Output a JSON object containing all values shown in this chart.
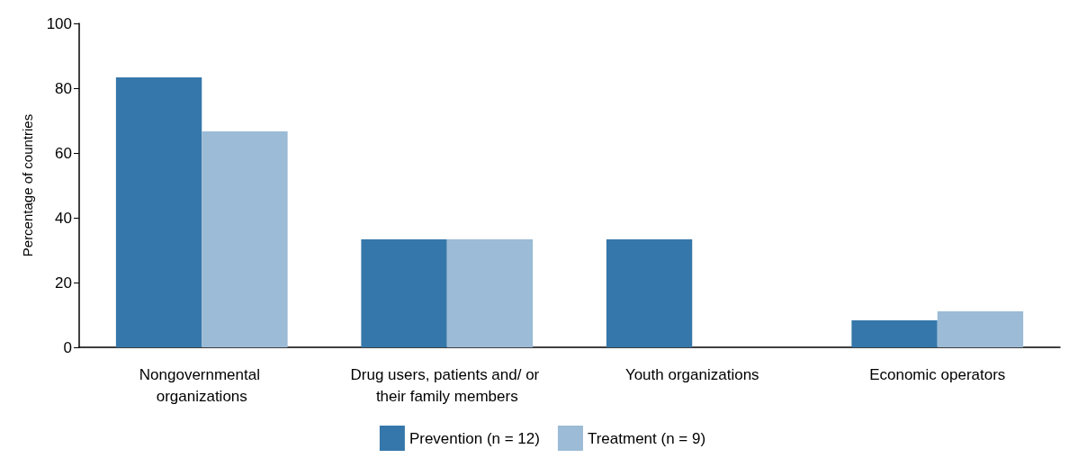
{
  "chart_data": {
    "type": "bar",
    "ylabel": "Percentage of countries",
    "categories": [
      "Nongovernmental organizations",
      "Drug users, patients and/ or their family members",
      "Youth organizations",
      "Economic operators"
    ],
    "series": [
      {
        "name": "Prevention (n = 12)",
        "color": "#3577aa",
        "values": [
          83.3,
          33.3,
          33.3,
          8.3
        ]
      },
      {
        "name": "Treatment (n = 9)",
        "color": "#9bbbd6",
        "values": [
          66.7,
          33.3,
          0,
          11.1
        ]
      }
    ],
    "ylim": [
      0,
      100
    ],
    "yticks": [
      0,
      20,
      40,
      60,
      80,
      100
    ],
    "grid": false,
    "legend": "bottom"
  }
}
